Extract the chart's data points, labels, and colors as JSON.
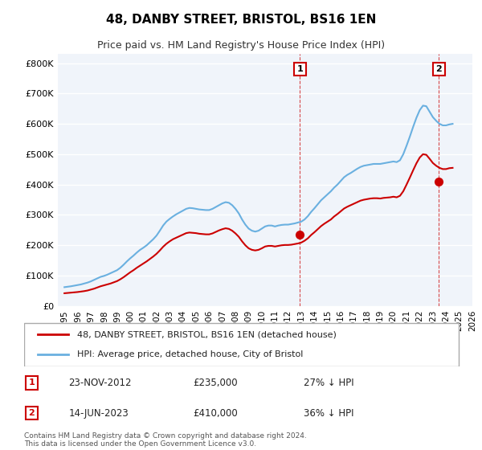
{
  "title": "48, DANBY STREET, BRISTOL, BS16 1EN",
  "subtitle": "Price paid vs. HM Land Registry's House Price Index (HPI)",
  "ylabel": "",
  "ylim": [
    0,
    830000
  ],
  "yticks": [
    0,
    100000,
    200000,
    300000,
    400000,
    500000,
    600000,
    700000,
    800000
  ],
  "ytick_labels": [
    "£0",
    "£100K",
    "£200K",
    "£300K",
    "£400K",
    "£500K",
    "£600K",
    "£700K",
    "£800K"
  ],
  "hpi_color": "#6ab0e0",
  "price_color": "#cc0000",
  "marker_color": "#cc0000",
  "annotation_box_color": "#cc0000",
  "background_color": "#f0f4fa",
  "grid_color": "#ffffff",
  "legend_label_price": "48, DANBY STREET, BRISTOL, BS16 1EN (detached house)",
  "legend_label_hpi": "HPI: Average price, detached house, City of Bristol",
  "annotation1_label": "1",
  "annotation1_date": "23-NOV-2012",
  "annotation1_price": "£235,000",
  "annotation1_pct": "27% ↓ HPI",
  "annotation2_label": "2",
  "annotation2_date": "14-JUN-2023",
  "annotation2_price": "£410,000",
  "annotation2_pct": "36% ↓ HPI",
  "footer": "Contains HM Land Registry data © Crown copyright and database right 2024.\nThis data is licensed under the Open Government Licence v3.0.",
  "hpi_x": [
    1995.0,
    1995.25,
    1995.5,
    1995.75,
    1996.0,
    1996.25,
    1996.5,
    1996.75,
    1997.0,
    1997.25,
    1997.5,
    1997.75,
    1998.0,
    1998.25,
    1998.5,
    1998.75,
    1999.0,
    1999.25,
    1999.5,
    1999.75,
    2000.0,
    2000.25,
    2000.5,
    2000.75,
    2001.0,
    2001.25,
    2001.5,
    2001.75,
    2002.0,
    2002.25,
    2002.5,
    2002.75,
    2003.0,
    2003.25,
    2003.5,
    2003.75,
    2004.0,
    2004.25,
    2004.5,
    2004.75,
    2005.0,
    2005.25,
    2005.5,
    2005.75,
    2006.0,
    2006.25,
    2006.5,
    2006.75,
    2007.0,
    2007.25,
    2007.5,
    2007.75,
    2008.0,
    2008.25,
    2008.5,
    2008.75,
    2009.0,
    2009.25,
    2009.5,
    2009.75,
    2010.0,
    2010.25,
    2010.5,
    2010.75,
    2011.0,
    2011.25,
    2011.5,
    2011.75,
    2012.0,
    2012.25,
    2012.5,
    2012.75,
    2013.0,
    2013.25,
    2013.5,
    2013.75,
    2014.0,
    2014.25,
    2014.5,
    2014.75,
    2015.0,
    2015.25,
    2015.5,
    2015.75,
    2016.0,
    2016.25,
    2016.5,
    2016.75,
    2017.0,
    2017.25,
    2017.5,
    2017.75,
    2018.0,
    2018.25,
    2018.5,
    2018.75,
    2019.0,
    2019.25,
    2019.5,
    2019.75,
    2020.0,
    2020.25,
    2020.5,
    2020.75,
    2021.0,
    2021.25,
    2021.5,
    2021.75,
    2022.0,
    2022.25,
    2022.5,
    2022.75,
    2023.0,
    2023.25,
    2023.5,
    2023.75,
    2024.0,
    2024.25,
    2024.5
  ],
  "hpi_y": [
    62000,
    63500,
    65000,
    67000,
    69000,
    71000,
    74000,
    77000,
    81000,
    86000,
    91000,
    96000,
    99000,
    103000,
    108000,
    113000,
    118000,
    126000,
    136000,
    147000,
    157000,
    166000,
    176000,
    185000,
    192000,
    200000,
    210000,
    220000,
    232000,
    248000,
    265000,
    278000,
    287000,
    295000,
    302000,
    308000,
    314000,
    320000,
    323000,
    322000,
    320000,
    318000,
    317000,
    316000,
    316000,
    320000,
    326000,
    332000,
    338000,
    342000,
    340000,
    332000,
    320000,
    305000,
    285000,
    268000,
    255000,
    248000,
    245000,
    248000,
    255000,
    262000,
    265000,
    265000,
    262000,
    265000,
    267000,
    268000,
    268000,
    270000,
    272000,
    275000,
    278000,
    285000,
    296000,
    310000,
    322000,
    335000,
    348000,
    358000,
    368000,
    378000,
    390000,
    400000,
    412000,
    424000,
    432000,
    438000,
    445000,
    452000,
    458000,
    462000,
    464000,
    466000,
    468000,
    468000,
    468000,
    470000,
    472000,
    474000,
    476000,
    474000,
    480000,
    500000,
    528000,
    558000,
    590000,
    620000,
    645000,
    660000,
    658000,
    640000,
    622000,
    610000,
    600000,
    595000,
    595000,
    598000,
    600000
  ],
  "price_x": [
    1995.0,
    1995.25,
    1995.5,
    1995.75,
    1996.0,
    1996.25,
    1996.5,
    1996.75,
    1997.0,
    1997.25,
    1997.5,
    1997.75,
    1998.0,
    1998.25,
    1998.5,
    1998.75,
    1999.0,
    1999.25,
    1999.5,
    1999.75,
    2000.0,
    2000.25,
    2000.5,
    2000.75,
    2001.0,
    2001.25,
    2001.5,
    2001.75,
    2002.0,
    2002.25,
    2002.5,
    2002.75,
    2003.0,
    2003.25,
    2003.5,
    2003.75,
    2004.0,
    2004.25,
    2004.5,
    2004.75,
    2005.0,
    2005.25,
    2005.5,
    2005.75,
    2006.0,
    2006.25,
    2006.5,
    2006.75,
    2007.0,
    2007.25,
    2007.5,
    2007.75,
    2008.0,
    2008.25,
    2008.5,
    2008.75,
    2009.0,
    2009.25,
    2009.5,
    2009.75,
    2010.0,
    2010.25,
    2010.5,
    2010.75,
    2011.0,
    2011.25,
    2011.5,
    2011.75,
    2012.0,
    2012.25,
    2012.5,
    2012.75,
    2013.0,
    2013.25,
    2013.5,
    2013.75,
    2014.0,
    2014.25,
    2014.5,
    2014.75,
    2015.0,
    2015.25,
    2015.5,
    2015.75,
    2016.0,
    2016.25,
    2016.5,
    2016.75,
    2017.0,
    2017.25,
    2017.5,
    2017.75,
    2018.0,
    2018.25,
    2018.5,
    2018.75,
    2019.0,
    2019.25,
    2019.5,
    2019.75,
    2020.0,
    2020.25,
    2020.5,
    2020.75,
    2021.0,
    2021.25,
    2021.5,
    2021.75,
    2022.0,
    2022.25,
    2022.5,
    2022.75,
    2023.0,
    2023.25,
    2023.5,
    2023.75,
    2024.0,
    2024.25,
    2024.5
  ],
  "price_y": [
    42000,
    43000,
    44000,
    45000,
    46000,
    47500,
    49000,
    51000,
    54000,
    57000,
    61000,
    65000,
    68000,
    71000,
    74000,
    78000,
    82000,
    88000,
    95000,
    103000,
    111000,
    118000,
    126000,
    133000,
    140000,
    147000,
    155000,
    163000,
    172000,
    183000,
    195000,
    205000,
    213000,
    220000,
    225000,
    230000,
    235000,
    240000,
    242000,
    241000,
    240000,
    238000,
    237000,
    236000,
    236000,
    239000,
    244000,
    249000,
    253000,
    256000,
    254000,
    248000,
    239000,
    228000,
    213000,
    200000,
    190000,
    185000,
    183000,
    185000,
    190000,
    196000,
    198000,
    198000,
    196000,
    198000,
    200000,
    201000,
    201000,
    202000,
    204000,
    206000,
    209000,
    215000,
    223000,
    234000,
    243000,
    253000,
    263000,
    271000,
    278000,
    285000,
    295000,
    303000,
    312000,
    321000,
    327000,
    332000,
    337000,
    342000,
    347000,
    350000,
    352000,
    354000,
    355000,
    355000,
    354000,
    356000,
    357000,
    358000,
    360000,
    358000,
    363000,
    378000,
    400000,
    423000,
    447000,
    470000,
    489000,
    500000,
    498000,
    485000,
    471000,
    462000,
    455000,
    451000,
    451000,
    454000,
    455000
  ],
  "sale1_x": 2012.9,
  "sale1_y": 235000,
  "sale2_x": 2023.46,
  "sale2_y": 410000,
  "vline1_x": 2012.9,
  "vline2_x": 2023.46,
  "xticks": [
    1995,
    1996,
    1997,
    1998,
    1999,
    2000,
    2001,
    2002,
    2003,
    2004,
    2005,
    2006,
    2007,
    2008,
    2009,
    2010,
    2011,
    2012,
    2013,
    2014,
    2015,
    2016,
    2017,
    2018,
    2019,
    2020,
    2021,
    2022,
    2023,
    2024,
    2025,
    2026
  ]
}
